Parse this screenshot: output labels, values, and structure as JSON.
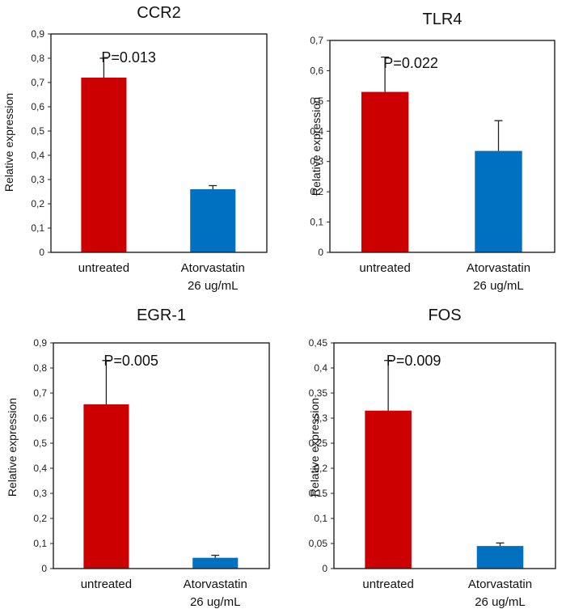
{
  "chart_data": [
    {
      "type": "bar",
      "title": "CCR2",
      "ylabel": "Relative expression",
      "ylim": [
        0,
        0.9
      ],
      "ytick_step": 0.1,
      "ytick_labels": [
        "0",
        "0,1",
        "0,2",
        "0,3",
        "0,4",
        "0,5",
        "0,6",
        "0,7",
        "0,8",
        "0,9"
      ],
      "categories": [
        [
          "untreated"
        ],
        [
          "Atorvastatin",
          "26 ug/mL"
        ]
      ],
      "values": [
        0.72,
        0.26
      ],
      "errors": [
        0.08,
        0.015
      ],
      "colors": [
        "#cc0000",
        "#0070c0"
      ],
      "annotation": "P=0.013"
    },
    {
      "type": "bar",
      "title": "TLR4",
      "ylabel": "Relative expression",
      "ylim": [
        0,
        0.7
      ],
      "ytick_step": 0.1,
      "ytick_labels": [
        "0",
        "0,1",
        "0,2",
        "0,3",
        "0,4",
        "0,5",
        "0,6",
        "0,7"
      ],
      "categories": [
        [
          "untreated"
        ],
        [
          "Atorvastatin",
          "26 ug/mL"
        ]
      ],
      "values": [
        0.53,
        0.335
      ],
      "errors": [
        0.115,
        0.1
      ],
      "colors": [
        "#cc0000",
        "#0070c0"
      ],
      "annotation": "P=0.022"
    },
    {
      "type": "bar",
      "title": "EGR-1",
      "ylabel": "Relative expression",
      "ylim": [
        0,
        0.9
      ],
      "ytick_step": 0.1,
      "ytick_labels": [
        "0",
        "0,1",
        "0,2",
        "0,3",
        "0,4",
        "0,5",
        "0,6",
        "0,7",
        "0,8",
        "0,9"
      ],
      "categories": [
        [
          "untreated"
        ],
        [
          "Atorvastatin",
          "26 ug/mL"
        ]
      ],
      "values": [
        0.655,
        0.043
      ],
      "errors": [
        0.175,
        0.01
      ],
      "colors": [
        "#cc0000",
        "#0070c0"
      ],
      "annotation": "P=0.005"
    },
    {
      "type": "bar",
      "title": "FOS",
      "ylabel": "Relative expression",
      "ylim": [
        0,
        0.45
      ],
      "ytick_step": 0.05,
      "ytick_labels": [
        "0",
        "0,05",
        "0,1",
        "0,15",
        "0,2",
        "0,25",
        "0,3",
        "0,35",
        "0,4",
        "0,45"
      ],
      "categories": [
        [
          "untreated"
        ],
        [
          "Atorvastatin",
          "26 ug/mL"
        ]
      ],
      "values": [
        0.315,
        0.045
      ],
      "errors": [
        0.1,
        0.006
      ],
      "colors": [
        "#cc0000",
        "#0070c0"
      ],
      "annotation": "P=0.009"
    }
  ]
}
